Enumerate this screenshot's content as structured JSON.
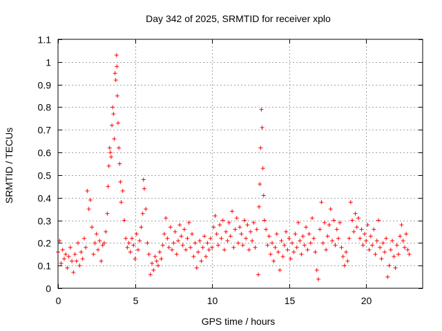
{
  "chart_data": {
    "type": "scatter",
    "title": "Day 342 of 2025, SRMTID for receiver xplo",
    "xlabel": "GPS time / hours",
    "ylabel": "SRMTID / TECUs",
    "xlim": [
      0,
      23.67
    ],
    "ylim": [
      0,
      1.1
    ],
    "xticks": [
      0,
      5,
      10,
      15,
      20
    ],
    "xtick_labels": [
      "0",
      "5",
      "10",
      "15",
      "20"
    ],
    "yticks": [
      0,
      0.1,
      0.2,
      0.3,
      0.4,
      0.5,
      0.6,
      0.7,
      0.8,
      0.9,
      1.0,
      1.1
    ],
    "ytick_labels": [
      "0",
      "0.1",
      "0.2",
      "0.3",
      "0.4",
      "0.5",
      "0.6",
      "0.7",
      "0.8",
      "0.9",
      "1",
      "1.1"
    ],
    "grid": true,
    "marker": "+",
    "color": "#ff0000",
    "series": [
      {
        "name": "SRMTID",
        "points": [
          [
            0.0,
            0.16
          ],
          [
            0.1,
            0.21
          ],
          [
            0.2,
            0.11
          ],
          [
            0.3,
            0.17
          ],
          [
            0.4,
            0.13
          ],
          [
            0.5,
            0.15
          ],
          [
            0.6,
            0.09
          ],
          [
            0.7,
            0.14
          ],
          [
            0.8,
            0.18
          ],
          [
            0.9,
            0.12
          ],
          [
            1.0,
            0.07
          ],
          [
            1.1,
            0.15
          ],
          [
            1.2,
            0.12
          ],
          [
            1.3,
            0.2
          ],
          [
            1.4,
            0.1
          ],
          [
            1.5,
            0.16
          ],
          [
            1.6,
            0.13
          ],
          [
            1.7,
            0.22
          ],
          [
            1.8,
            0.18
          ],
          [
            1.9,
            0.43
          ],
          [
            2.0,
            0.35
          ],
          [
            2.1,
            0.39
          ],
          [
            2.2,
            0.27
          ],
          [
            2.3,
            0.15
          ],
          [
            2.4,
            0.2
          ],
          [
            2.5,
            0.24
          ],
          [
            2.6,
            0.17
          ],
          [
            2.7,
            0.21
          ],
          [
            2.8,
            0.12
          ],
          [
            2.9,
            0.19
          ],
          [
            3.0,
            0.2
          ],
          [
            3.1,
            0.25
          ],
          [
            3.2,
            0.33
          ],
          [
            3.25,
            0.45
          ],
          [
            3.3,
            0.54
          ],
          [
            3.35,
            0.62
          ],
          [
            3.4,
            0.6
          ],
          [
            3.45,
            0.58
          ],
          [
            3.5,
            0.72
          ],
          [
            3.55,
            0.8
          ],
          [
            3.6,
            0.77
          ],
          [
            3.65,
            0.66
          ],
          [
            3.7,
            0.95
          ],
          [
            3.75,
            0.92
          ],
          [
            3.8,
            1.03
          ],
          [
            3.82,
            0.98
          ],
          [
            3.85,
            0.85
          ],
          [
            3.9,
            0.73
          ],
          [
            3.95,
            0.62
          ],
          [
            4.0,
            0.55
          ],
          [
            4.05,
            0.47
          ],
          [
            4.1,
            0.38
          ],
          [
            4.2,
            0.43
          ],
          [
            4.3,
            0.3
          ],
          [
            4.4,
            0.22
          ],
          [
            4.5,
            0.18
          ],
          [
            4.6,
            0.2
          ],
          [
            4.7,
            0.16
          ],
          [
            4.8,
            0.22
          ],
          [
            4.9,
            0.19
          ],
          [
            5.0,
            0.13
          ],
          [
            5.1,
            0.24
          ],
          [
            5.2,
            0.17
          ],
          [
            5.3,
            0.21
          ],
          [
            5.4,
            0.27
          ],
          [
            5.5,
            0.33
          ],
          [
            5.55,
            0.48
          ],
          [
            5.6,
            0.44
          ],
          [
            5.7,
            0.35
          ],
          [
            5.8,
            0.2
          ],
          [
            5.9,
            0.15
          ],
          [
            6.0,
            0.06
          ],
          [
            6.1,
            0.11
          ],
          [
            6.2,
            0.08
          ],
          [
            6.3,
            0.14
          ],
          [
            6.4,
            0.12
          ],
          [
            6.5,
            0.1
          ],
          [
            6.6,
            0.16
          ],
          [
            6.7,
            0.13
          ],
          [
            6.8,
            0.19
          ],
          [
            6.9,
            0.24
          ],
          [
            7.0,
            0.31
          ],
          [
            7.1,
            0.22
          ],
          [
            7.2,
            0.18
          ],
          [
            7.3,
            0.27
          ],
          [
            7.4,
            0.17
          ],
          [
            7.5,
            0.2
          ],
          [
            7.6,
            0.25
          ],
          [
            7.7,
            0.15
          ],
          [
            7.8,
            0.21
          ],
          [
            7.9,
            0.28
          ],
          [
            8.0,
            0.23
          ],
          [
            8.1,
            0.19
          ],
          [
            8.2,
            0.26
          ],
          [
            8.3,
            0.17
          ],
          [
            8.4,
            0.22
          ],
          [
            8.5,
            0.29
          ],
          [
            8.6,
            0.18
          ],
          [
            8.7,
            0.24
          ],
          [
            8.8,
            0.14
          ],
          [
            8.9,
            0.2
          ],
          [
            9.0,
            0.09
          ],
          [
            9.1,
            0.16
          ],
          [
            9.2,
            0.21
          ],
          [
            9.3,
            0.12
          ],
          [
            9.4,
            0.18
          ],
          [
            9.5,
            0.23
          ],
          [
            9.6,
            0.14
          ],
          [
            9.7,
            0.2
          ],
          [
            9.8,
            0.17
          ],
          [
            9.9,
            0.22
          ],
          [
            10.0,
            0.18
          ],
          [
            10.1,
            0.27
          ],
          [
            10.2,
            0.32
          ],
          [
            10.3,
            0.24
          ],
          [
            10.4,
            0.19
          ],
          [
            10.5,
            0.28
          ],
          [
            10.6,
            0.22
          ],
          [
            10.7,
            0.3
          ],
          [
            10.8,
            0.17
          ],
          [
            10.9,
            0.25
          ],
          [
            11.0,
            0.21
          ],
          [
            11.1,
            0.29
          ],
          [
            11.2,
            0.23
          ],
          [
            11.3,
            0.34
          ],
          [
            11.4,
            0.18
          ],
          [
            11.5,
            0.26
          ],
          [
            11.6,
            0.31
          ],
          [
            11.7,
            0.2
          ],
          [
            11.8,
            0.27
          ],
          [
            11.9,
            0.24
          ],
          [
            12.0,
            0.19
          ],
          [
            12.1,
            0.3
          ],
          [
            12.2,
            0.22
          ],
          [
            12.3,
            0.28
          ],
          [
            12.4,
            0.17
          ],
          [
            12.5,
            0.25
          ],
          [
            12.6,
            0.21
          ],
          [
            12.7,
            0.29
          ],
          [
            12.8,
            0.18
          ],
          [
            12.9,
            0.26
          ],
          [
            13.0,
            0.06
          ],
          [
            13.05,
            0.36
          ],
          [
            13.1,
            0.46
          ],
          [
            13.15,
            0.62
          ],
          [
            13.2,
            0.79
          ],
          [
            13.25,
            0.71
          ],
          [
            13.3,
            0.53
          ],
          [
            13.35,
            0.41
          ],
          [
            13.4,
            0.3
          ],
          [
            13.5,
            0.26
          ],
          [
            13.6,
            0.19
          ],
          [
            13.7,
            0.23
          ],
          [
            13.8,
            0.15
          ],
          [
            13.9,
            0.2
          ],
          [
            14.0,
            0.12
          ],
          [
            14.1,
            0.18
          ],
          [
            14.2,
            0.24
          ],
          [
            14.3,
            0.16
          ],
          [
            14.4,
            0.08
          ],
          [
            14.5,
            0.21
          ],
          [
            14.6,
            0.14
          ],
          [
            14.7,
            0.19
          ],
          [
            14.8,
            0.25
          ],
          [
            14.9,
            0.17
          ],
          [
            15.0,
            0.22
          ],
          [
            15.1,
            0.13
          ],
          [
            15.2,
            0.2
          ],
          [
            15.3,
            0.16
          ],
          [
            15.4,
            0.24
          ],
          [
            15.5,
            0.18
          ],
          [
            15.6,
            0.29
          ],
          [
            15.7,
            0.21
          ],
          [
            15.8,
            0.15
          ],
          [
            15.9,
            0.23
          ],
          [
            16.0,
            0.19
          ],
          [
            16.1,
            0.27
          ],
          [
            16.2,
            0.17
          ],
          [
            16.3,
            0.24
          ],
          [
            16.4,
            0.2
          ],
          [
            16.5,
            0.31
          ],
          [
            16.6,
            0.22
          ],
          [
            16.7,
            0.16
          ],
          [
            16.8,
            0.08
          ],
          [
            16.9,
            0.04
          ],
          [
            17.0,
            0.26
          ],
          [
            17.1,
            0.38
          ],
          [
            17.2,
            0.2
          ],
          [
            17.3,
            0.29
          ],
          [
            17.4,
            0.17
          ],
          [
            17.5,
            0.23
          ],
          [
            17.6,
            0.28
          ],
          [
            17.7,
            0.35
          ],
          [
            17.8,
            0.21
          ],
          [
            17.9,
            0.3
          ],
          [
            18.0,
            0.19
          ],
          [
            18.1,
            0.26
          ],
          [
            18.2,
            0.22
          ],
          [
            18.3,
            0.29
          ],
          [
            18.4,
            0.18
          ],
          [
            18.5,
            0.14
          ],
          [
            18.6,
            0.1
          ],
          [
            18.7,
            0.16
          ],
          [
            18.8,
            0.12
          ],
          [
            18.9,
            0.22
          ],
          [
            19.0,
            0.38
          ],
          [
            19.1,
            0.3
          ],
          [
            19.2,
            0.25
          ],
          [
            19.3,
            0.33
          ],
          [
            19.4,
            0.27
          ],
          [
            19.5,
            0.31
          ],
          [
            19.6,
            0.22
          ],
          [
            19.7,
            0.26
          ],
          [
            19.8,
            0.19
          ],
          [
            19.9,
            0.24
          ],
          [
            20.0,
            0.21
          ],
          [
            20.1,
            0.28
          ],
          [
            20.2,
            0.17
          ],
          [
            20.3,
            0.23
          ],
          [
            20.4,
            0.19
          ],
          [
            20.5,
            0.26
          ],
          [
            20.6,
            0.15
          ],
          [
            20.7,
            0.21
          ],
          [
            20.8,
            0.3
          ],
          [
            20.9,
            0.18
          ],
          [
            21.0,
            0.13
          ],
          [
            21.1,
            0.2
          ],
          [
            21.2,
            0.16
          ],
          [
            21.3,
            0.22
          ],
          [
            21.4,
            0.05
          ],
          [
            21.5,
            0.1
          ],
          [
            21.6,
            0.17
          ],
          [
            21.7,
            0.21
          ],
          [
            21.8,
            0.14
          ],
          [
            21.9,
            0.09
          ],
          [
            22.0,
            0.19
          ],
          [
            22.1,
            0.15
          ],
          [
            22.2,
            0.23
          ],
          [
            22.3,
            0.28
          ],
          [
            22.4,
            0.21
          ],
          [
            22.5,
            0.18
          ],
          [
            22.6,
            0.24
          ],
          [
            22.7,
            0.17
          ],
          [
            22.8,
            0.15
          ]
        ]
      }
    ]
  }
}
